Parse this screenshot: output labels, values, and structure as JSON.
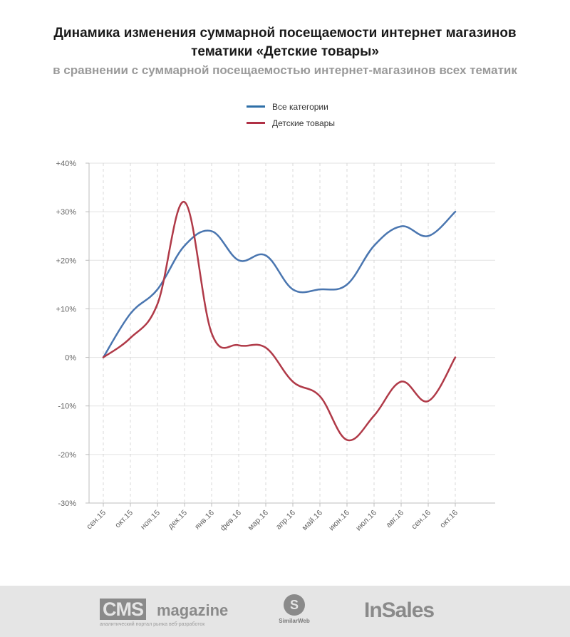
{
  "header": {
    "title_line1": "Динамика изменения суммарной посещаемости интернет магазинов",
    "title_line2": "тематики «Детские товары»",
    "subtitle": "в сравнении с суммарной посещаемостью интернет-магазинов всех тематик"
  },
  "legend": {
    "items": [
      {
        "label": "Все категории",
        "color": "#2e6fa7"
      },
      {
        "label": "Детские товары",
        "color": "#b03045"
      }
    ]
  },
  "chart_data": {
    "type": "line",
    "categories": [
      "сен.15",
      "окт.15",
      "ноя.15",
      "дек.15",
      "янв.16",
      "фев.16",
      "мар.16",
      "апр.16",
      "май.16",
      "июн.16",
      "июл.16",
      "авг.16",
      "сен.16",
      "окт.16"
    ],
    "y_tick_labels": [
      "+40%",
      "+30%",
      "+20%",
      "+10%",
      "0%",
      "-10%",
      "-20%",
      "-30%"
    ],
    "ylim": [
      -30,
      40
    ],
    "grid": true,
    "legend_position": "top",
    "series": [
      {
        "name": "Все категории",
        "color": "#4a76b0",
        "values": [
          0,
          9,
          14,
          23,
          26,
          20,
          21,
          14,
          14,
          15,
          23,
          27,
          25,
          30
        ]
      },
      {
        "name": "Детские товары",
        "color": "#b03a48",
        "values": [
          0,
          4,
          11,
          32,
          5,
          2.5,
          2,
          -5,
          -8,
          -17,
          -12,
          -5,
          -9,
          0
        ]
      }
    ]
  },
  "footer": {
    "cms_box": "CMS",
    "cms_word": "magazine",
    "cms_tagline": "аналитический портал рынка веб-разработок",
    "similarweb_letter": "S",
    "similarweb": "SimilarWeb",
    "insales": "InSales"
  }
}
